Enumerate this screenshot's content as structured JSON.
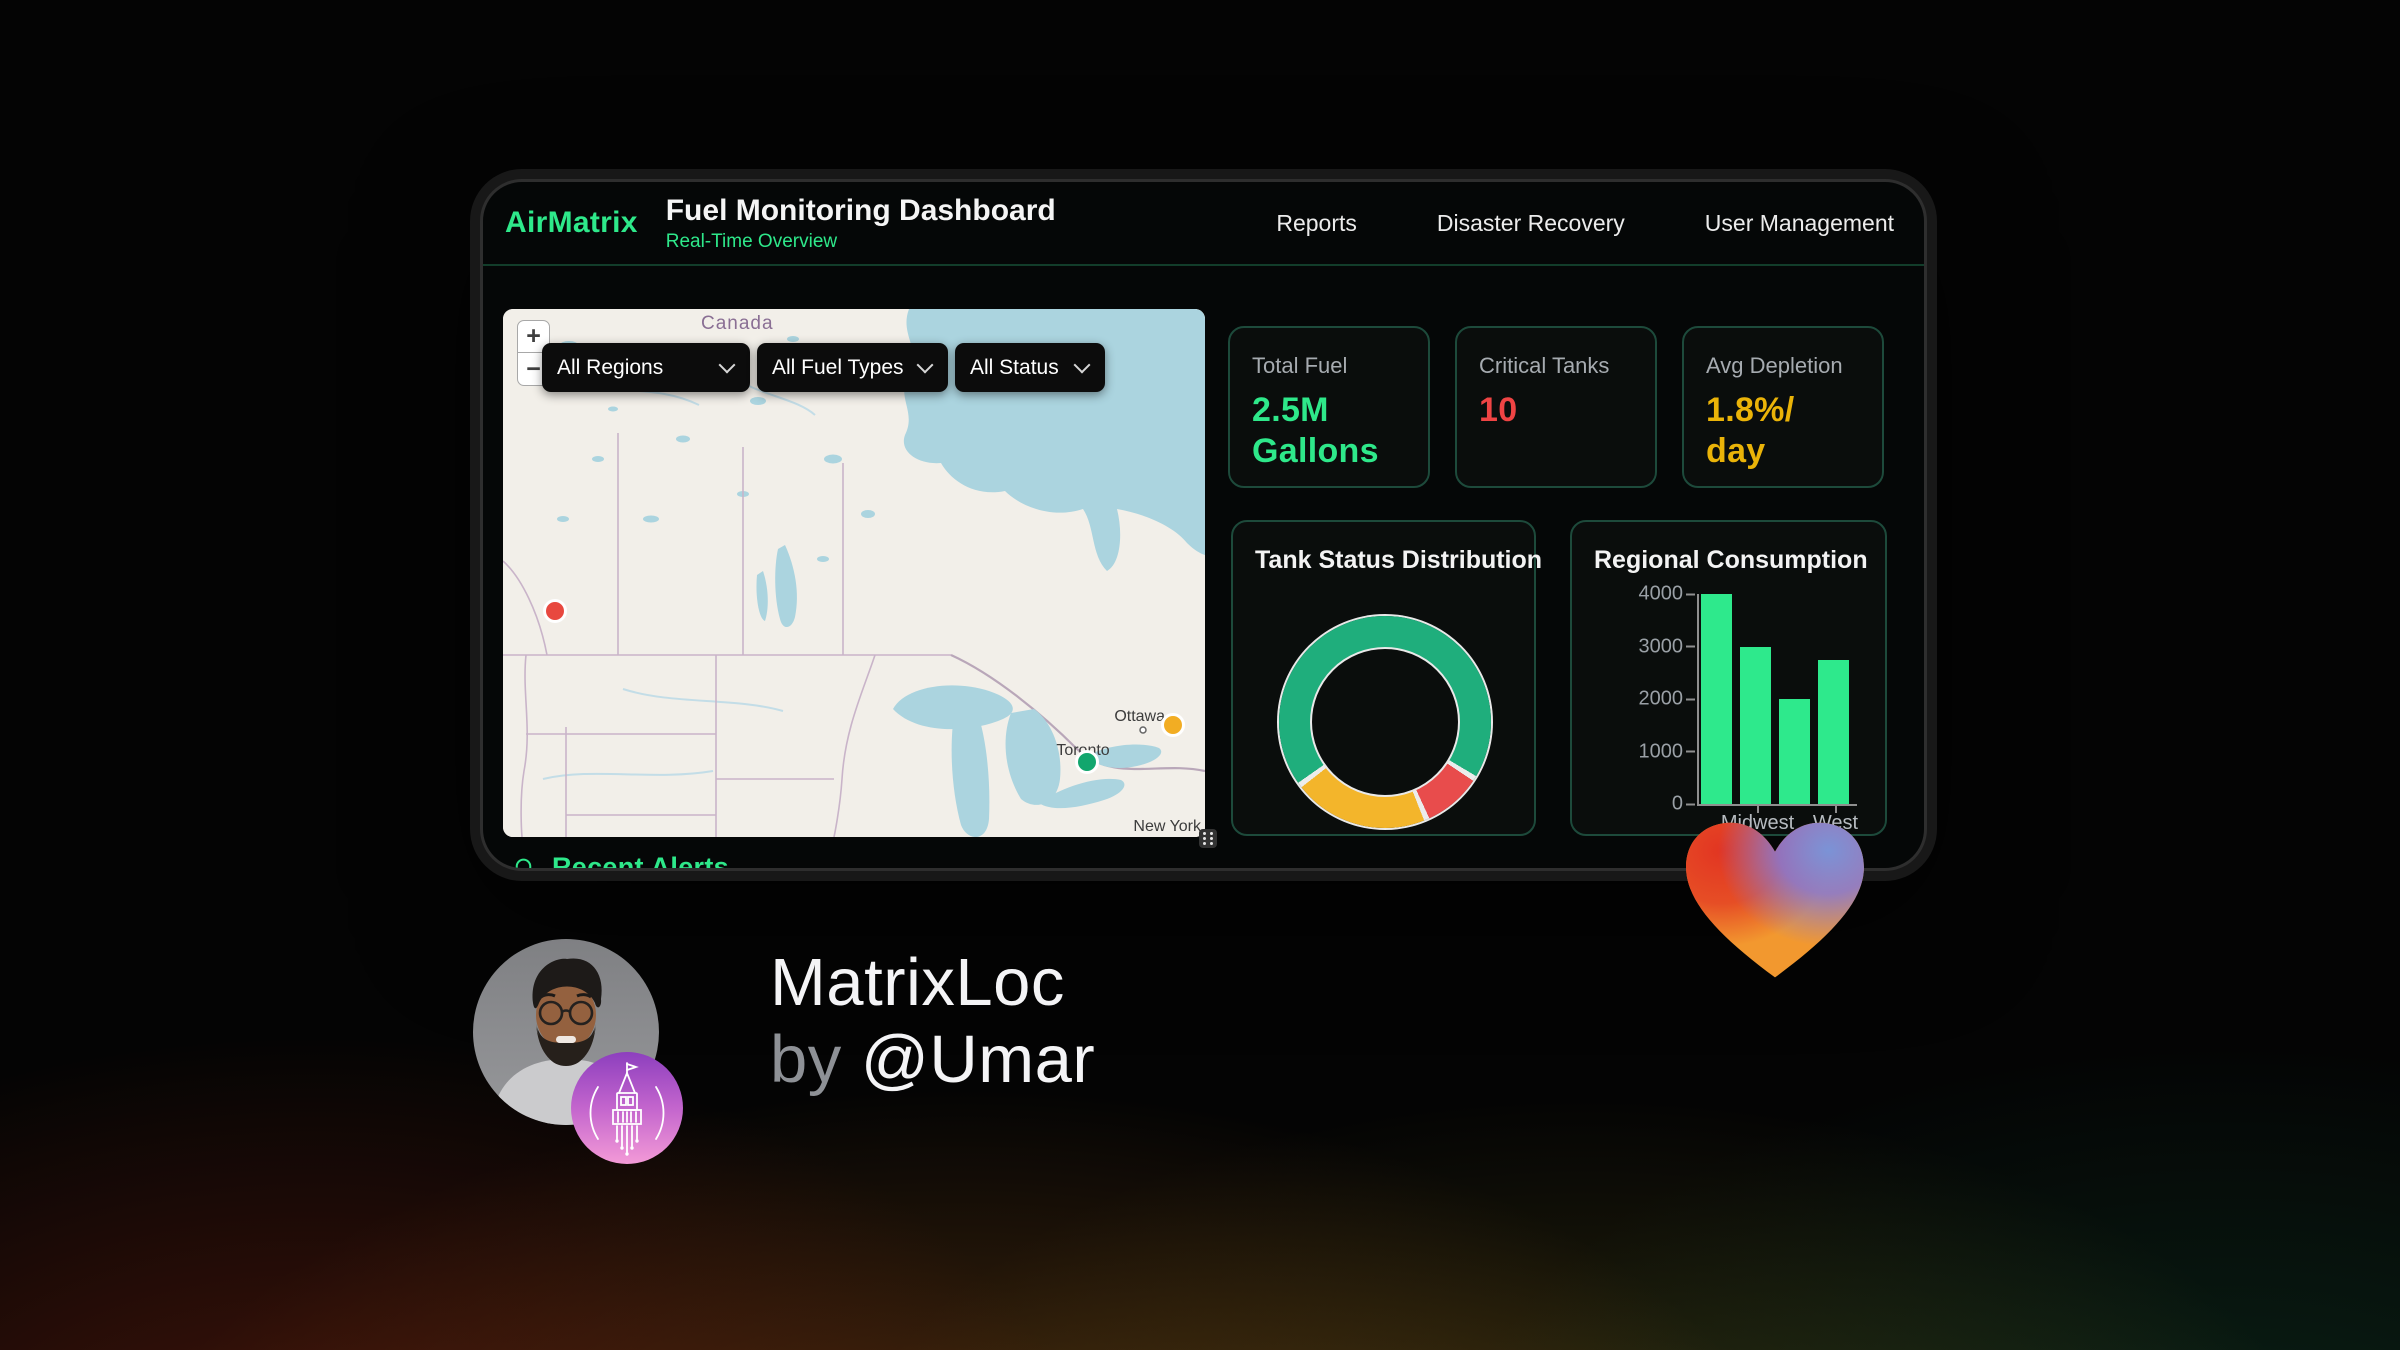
{
  "accent_green": "#2ee88a",
  "window": {
    "brand": "AirMatrix",
    "title": "Fuel Monitoring Dashboard",
    "subtitle": "Real-Time Overview",
    "nav": [
      {
        "label": "Reports"
      },
      {
        "label": "Disaster Recovery"
      },
      {
        "label": "User Management"
      }
    ],
    "map": {
      "zoom_in": "+",
      "zoom_out": "−",
      "filters": [
        {
          "value": "All Regions"
        },
        {
          "value": "All Fuel Types"
        },
        {
          "value": "All Status"
        }
      ],
      "place_labels": {
        "country": "Canada",
        "city1": "Ottawa",
        "city2": "Toronto",
        "city3": "New York"
      },
      "markers": [
        {
          "color": "#e8483f"
        },
        {
          "color": "#f2ad23"
        },
        {
          "color": "#12a66d"
        }
      ]
    },
    "stats": [
      {
        "label": "Total Fuel",
        "value": "2.5M Gallons",
        "color": "#2ee88a"
      },
      {
        "label": "Critical Tanks",
        "value": "10",
        "color": "#ef4444"
      },
      {
        "label": "Avg Depletion",
        "value": "1.8%/ day",
        "color": "#eab308"
      }
    ],
    "alerts_heading": "Recent Alerts"
  },
  "chart_data": [
    {
      "type": "pie",
      "variant": "doughnut",
      "title": "Tank Status Distribution",
      "segments": [
        {
          "name": "green",
          "percent": 70,
          "color": "#1fae7c"
        },
        {
          "name": "red",
          "percent": 9,
          "color": "#e84c4c"
        },
        {
          "name": "yellow",
          "percent": 21,
          "color": "#f3b52b"
        }
      ],
      "rotation_deg": 235,
      "gap_deg": 3,
      "legend": false
    },
    {
      "type": "bar",
      "title": "Regional Consumption",
      "values": [
        4000,
        3000,
        2000,
        2750
      ],
      "x_labels_visible": [
        "Midwest",
        "West"
      ],
      "yticks": [
        0,
        1000,
        2000,
        3000,
        4000
      ],
      "ylim": [
        0,
        4000
      ],
      "bar_color": "#2ee98c",
      "grid": false
    }
  ],
  "maker": {
    "title": "MatrixLoc",
    "by": "by",
    "author": "@Umar"
  }
}
